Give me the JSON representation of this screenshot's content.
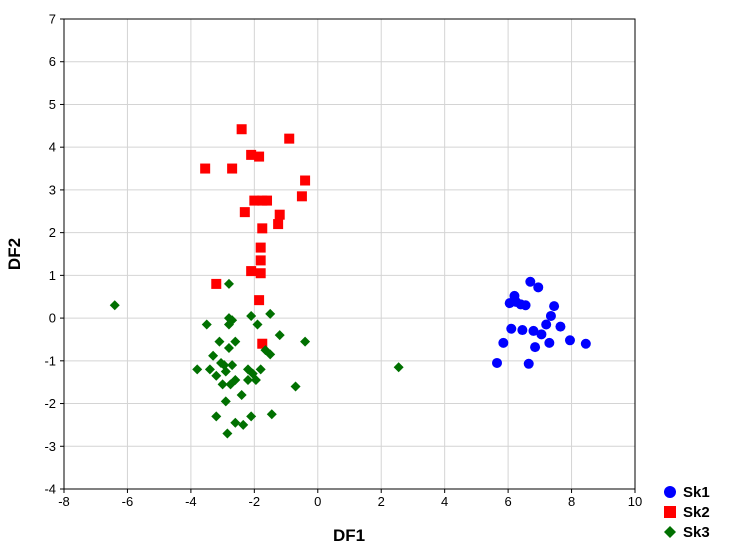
{
  "chart_data": {
    "type": "scatter",
    "title": "",
    "xlabel": "DF1",
    "ylabel": "DF2",
    "xlim": [
      -8,
      10
    ],
    "ylim": [
      -4,
      7
    ],
    "xticks": [
      -8,
      -6,
      -4,
      -2,
      0,
      2,
      4,
      6,
      8,
      10
    ],
    "yticks": [
      -4,
      -3,
      -2,
      -1,
      0,
      1,
      2,
      3,
      4,
      5,
      6,
      7
    ],
    "grid": true,
    "legend_position": "bottom-right outside",
    "series": [
      {
        "name": "Sk1",
        "marker": "circle",
        "color": "#0000ff",
        "points": [
          [
            6.7,
            0.85
          ],
          [
            6.95,
            0.72
          ],
          [
            6.2,
            0.52
          ],
          [
            6.05,
            0.35
          ],
          [
            6.25,
            0.38
          ],
          [
            6.4,
            0.32
          ],
          [
            6.55,
            0.3
          ],
          [
            7.45,
            0.28
          ],
          [
            7.35,
            0.05
          ],
          [
            7.2,
            -0.15
          ],
          [
            7.65,
            -0.2
          ],
          [
            6.1,
            -0.25
          ],
          [
            6.45,
            -0.28
          ],
          [
            6.8,
            -0.3
          ],
          [
            7.05,
            -0.38
          ],
          [
            5.85,
            -0.58
          ],
          [
            7.3,
            -0.58
          ],
          [
            7.95,
            -0.52
          ],
          [
            8.45,
            -0.6
          ],
          [
            6.85,
            -0.68
          ],
          [
            5.65,
            -1.05
          ],
          [
            6.65,
            -1.07
          ]
        ]
      },
      {
        "name": "Sk2",
        "marker": "square",
        "color": "#ff0000",
        "points": [
          [
            -2.4,
            4.42
          ],
          [
            -0.9,
            4.2
          ],
          [
            -2.1,
            3.82
          ],
          [
            -1.85,
            3.78
          ],
          [
            -3.55,
            3.5
          ],
          [
            -2.7,
            3.5
          ],
          [
            -0.4,
            3.22
          ],
          [
            -0.5,
            2.85
          ],
          [
            -2.0,
            2.75
          ],
          [
            -1.75,
            2.75
          ],
          [
            -1.6,
            2.75
          ],
          [
            -2.3,
            2.48
          ],
          [
            -1.2,
            2.42
          ],
          [
            -1.25,
            2.2
          ],
          [
            -1.75,
            2.1
          ],
          [
            -1.8,
            1.65
          ],
          [
            -1.8,
            1.35
          ],
          [
            -2.1,
            1.1
          ],
          [
            -1.8,
            1.05
          ],
          [
            -3.2,
            0.8
          ],
          [
            -1.85,
            0.42
          ],
          [
            -1.75,
            -0.6
          ]
        ]
      },
      {
        "name": "Sk3",
        "marker": "diamond",
        "color": "#007000",
        "points": [
          [
            -6.4,
            0.3
          ],
          [
            -2.8,
            0.8
          ],
          [
            -2.8,
            0.0
          ],
          [
            -2.7,
            -0.05
          ],
          [
            -2.8,
            -0.15
          ],
          [
            -3.5,
            -0.15
          ],
          [
            -1.9,
            -0.15
          ],
          [
            -2.1,
            0.05
          ],
          [
            -1.5,
            0.1
          ],
          [
            -1.2,
            -0.4
          ],
          [
            -0.4,
            -0.55
          ],
          [
            -3.1,
            -0.55
          ],
          [
            -2.6,
            -0.55
          ],
          [
            -1.65,
            -0.75
          ],
          [
            -1.5,
            -0.85
          ],
          [
            -2.8,
            -0.7
          ],
          [
            -3.3,
            -0.88
          ],
          [
            -3.05,
            -1.05
          ],
          [
            -2.95,
            -1.1
          ],
          [
            -2.7,
            -1.1
          ],
          [
            -3.4,
            -1.2
          ],
          [
            -3.8,
            -1.2
          ],
          [
            -2.9,
            -1.25
          ],
          [
            -2.2,
            -1.2
          ],
          [
            -2.05,
            -1.3
          ],
          [
            -1.8,
            -1.2
          ],
          [
            -2.6,
            -1.45
          ],
          [
            -2.2,
            -1.45
          ],
          [
            -1.95,
            -1.45
          ],
          [
            -3.2,
            -1.35
          ],
          [
            -3.0,
            -1.55
          ],
          [
            -2.75,
            -1.55
          ],
          [
            -2.4,
            -1.8
          ],
          [
            -2.9,
            -1.95
          ],
          [
            -0.7,
            -1.6
          ],
          [
            -3.2,
            -2.3
          ],
          [
            -2.6,
            -2.45
          ],
          [
            -2.35,
            -2.5
          ],
          [
            -2.1,
            -2.3
          ],
          [
            -1.45,
            -2.25
          ],
          [
            -2.85,
            -2.7
          ],
          [
            2.55,
            -1.15
          ]
        ]
      }
    ]
  }
}
